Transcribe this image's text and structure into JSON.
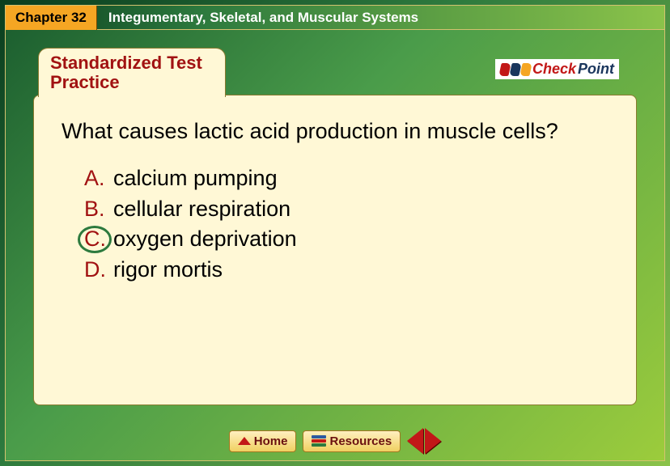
{
  "header": {
    "chapter_label": "Chapter 32",
    "chapter_title": "Integumentary, Skeletal, and Muscular Systems"
  },
  "folder": {
    "tab_line1": "Standardized Test",
    "tab_line2": "Practice",
    "tab_text_color": "#a11212",
    "body_bg": "#fff8d6",
    "body_border": "#8a7a30"
  },
  "checkpoint": {
    "check_text": "Check",
    "point_text": "Point",
    "check_color": "#c21818",
    "point_color": "#1a365d",
    "swoosh_colors": [
      "#c21818",
      "#1a365d",
      "#f5a623"
    ]
  },
  "question": {
    "text": "What causes lactic acid production in muscle cells?",
    "text_color": "#000000",
    "font_size": 27
  },
  "answers": {
    "letter_color": "#a11212",
    "text_color": "#000000",
    "font_size": 27,
    "correct_index": 2,
    "circle_color": "#2d7a3e",
    "items": [
      {
        "letter": "A.",
        "text": "calcium pumping"
      },
      {
        "letter": "B.",
        "text": "cellular respiration"
      },
      {
        "letter": "C.",
        "text": "oxygen deprivation"
      },
      {
        "letter": "D.",
        "text": "rigor mortis"
      }
    ]
  },
  "nav": {
    "home_label": "Home",
    "resources_label": "Resources",
    "btn_text_color": "#6a1010",
    "arrow_color": "#c21818",
    "book_colors": [
      "#2d5aa0",
      "#c21818",
      "#2d7a3e"
    ]
  },
  "colors": {
    "bg_gradient_start": "#0a3d1e",
    "bg_gradient_mid": "#2d7a3e",
    "bg_gradient_end": "#8bc34a",
    "chapter_tab_bg": "#f5a623",
    "frame_border": "#d4c270"
  }
}
